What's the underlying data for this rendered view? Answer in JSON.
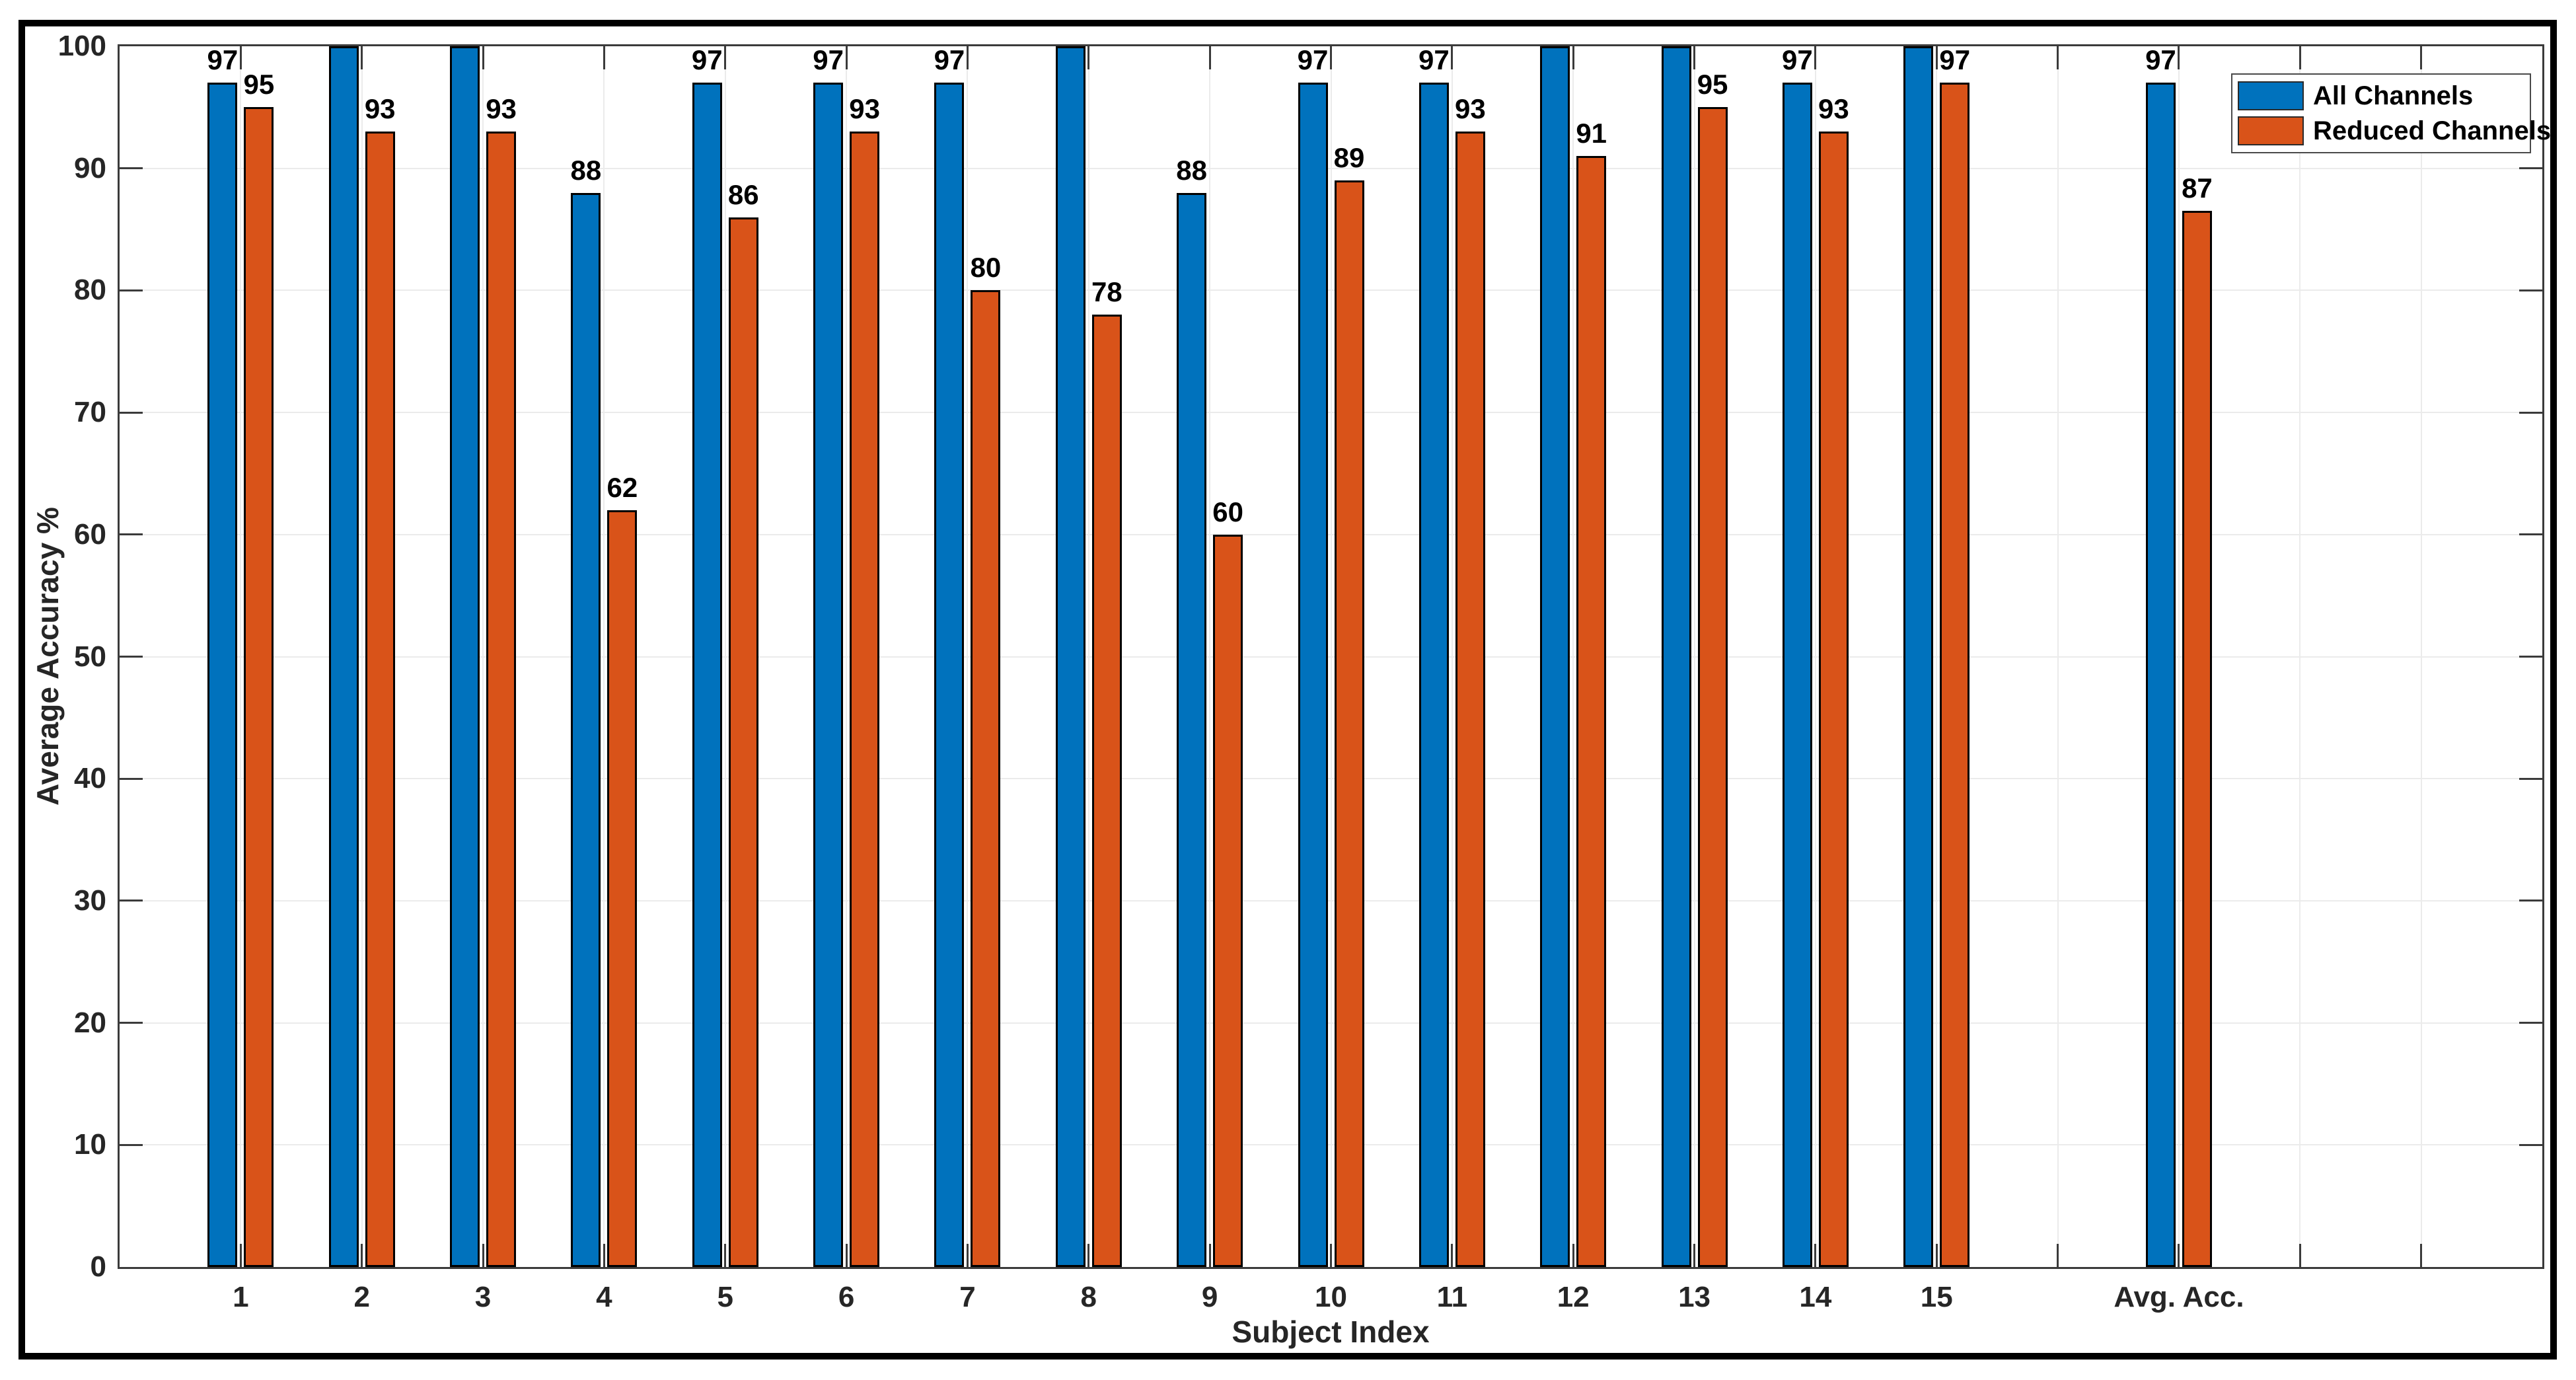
{
  "chart_data": {
    "type": "bar",
    "title": "",
    "xlabel": "Subject Index",
    "ylabel": "Average Accuracy %",
    "ylim": [
      0,
      100
    ],
    "yticks": [
      0,
      10,
      20,
      30,
      40,
      50,
      60,
      70,
      80,
      90,
      100
    ],
    "grid": true,
    "legend_position": "top-right",
    "categories": [
      "1",
      "2",
      "3",
      "4",
      "5",
      "6",
      "7",
      "8",
      "9",
      "10",
      "11",
      "12",
      "13",
      "14",
      "15",
      "Avg. Acc."
    ],
    "category_slots": [
      1,
      2,
      3,
      4,
      5,
      6,
      7,
      8,
      9,
      10,
      11,
      12,
      13,
      14,
      15,
      17
    ],
    "unlabeled_tick_slots": [
      16,
      18,
      19
    ],
    "axis_slot_count": 20,
    "series": [
      {
        "name": "All Channels",
        "color": "#0072BD",
        "values": [
          97,
          100,
          100,
          88,
          97,
          97,
          97,
          100,
          88,
          97,
          97,
          100,
          100,
          97,
          100,
          97
        ],
        "bar_labels": [
          "97",
          "",
          "",
          "88",
          "97",
          "97",
          "97",
          "",
          "88",
          "97",
          "97",
          "",
          "",
          "97",
          "",
          "97"
        ]
      },
      {
        "name": "Reduced Channels",
        "color": "#D95319",
        "values": [
          95,
          93,
          93,
          62,
          86,
          93,
          80,
          78,
          60,
          89,
          93,
          91,
          95,
          93,
          97,
          86.5
        ],
        "bar_labels": [
          "95",
          "93",
          "93",
          "62",
          "86",
          "93",
          "80",
          "78",
          "60",
          "89",
          "93",
          "91",
          "95",
          "93",
          "97",
          "87"
        ]
      }
    ],
    "colors": {
      "axis": "#3b3b3b",
      "grid": "#ebebeb",
      "bar_edge": "#000000",
      "text": "#262626",
      "background": "#ffffff",
      "figure_border": "#000000"
    }
  }
}
